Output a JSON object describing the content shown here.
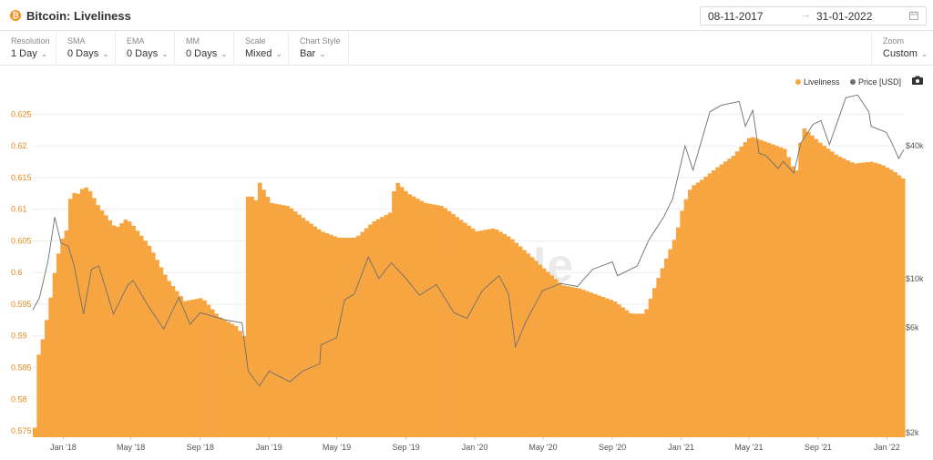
{
  "header": {
    "logo_glyph": "₿",
    "title": "Bitcoin: Liveliness",
    "date_from": "08-11-2017",
    "date_arrow": "→",
    "date_to": "31-01-2022"
  },
  "toolbar": {
    "resolution": {
      "label": "Resolution",
      "value": "1 Day"
    },
    "sma": {
      "label": "SMA",
      "value": "0 Days"
    },
    "ema": {
      "label": "EMA",
      "value": "0 Days"
    },
    "mm": {
      "label": "MM",
      "value": "0 Days"
    },
    "scale": {
      "label": "Scale",
      "value": "Mixed"
    },
    "chart_style": {
      "label": "Chart Style",
      "value": "Bar"
    },
    "zoom": {
      "label": "Zoom",
      "value": "Custom"
    }
  },
  "legend": {
    "liveliness": "Liveliness",
    "price": "Price [USD]"
  },
  "watermark": "glassnode",
  "colors": {
    "liveliness": "#f7a540",
    "price": "#6e6e6e",
    "left_axis_text": "#e8891b",
    "grid": "#eeeeee"
  },
  "chart_data": {
    "type": "bar",
    "x_ticks": [
      "Jan '18",
      "May '18",
      "Sep '18",
      "Jan '19",
      "May '19",
      "Sep '19",
      "Jan '20",
      "May '20",
      "Sep '20",
      "Jan '21",
      "May '21",
      "Sep '21",
      "Jan '22"
    ],
    "left_axis": {
      "ticks": [
        "0.625",
        "0.62",
        "0.615",
        "0.61",
        "0.605",
        "0.6",
        "0.595",
        "0.59",
        "0.585",
        "0.58",
        "0.575"
      ],
      "ylim": [
        0.574,
        0.6275
      ]
    },
    "right_axis": {
      "scale": "log",
      "ticks": [
        "$40k",
        "$10k",
        "$6k",
        "$2k"
      ]
    },
    "series": [
      {
        "name": "Liveliness",
        "type": "bar",
        "axis": "left",
        "points": [
          [
            "2017-11-08",
            0.5755
          ],
          [
            "2017-11-12",
            0.586
          ],
          [
            "2017-11-25",
            0.5905
          ],
          [
            "2017-12-05",
            0.5955
          ],
          [
            "2017-12-15",
            0.601
          ],
          [
            "2017-12-25",
            0.605
          ],
          [
            "2018-01-05",
            0.607
          ],
          [
            "2018-01-12",
            0.6135
          ],
          [
            "2018-01-20",
            0.612
          ],
          [
            "2018-02-01",
            0.6133
          ],
          [
            "2018-02-10",
            0.6135
          ],
          [
            "2018-03-01",
            0.6105
          ],
          [
            "2018-04-01",
            0.607
          ],
          [
            "2018-04-20",
            0.6085
          ],
          [
            "2018-05-01",
            0.6075
          ],
          [
            "2018-06-01",
            0.604
          ],
          [
            "2018-07-01",
            0.599
          ],
          [
            "2018-08-01",
            0.5955
          ],
          [
            "2018-09-01",
            0.596
          ],
          [
            "2018-10-01",
            0.593
          ],
          [
            "2018-11-01",
            0.5915
          ],
          [
            "2018-11-18",
            0.5895
          ],
          [
            "2018-11-20",
            0.612
          ],
          [
            "2018-12-01",
            0.612
          ],
          [
            "2018-12-08",
            0.611
          ],
          [
            "2018-12-10",
            0.6145
          ],
          [
            "2019-01-01",
            0.611
          ],
          [
            "2019-02-01",
            0.6105
          ],
          [
            "2019-03-01",
            0.6085
          ],
          [
            "2019-04-01",
            0.6065
          ],
          [
            "2019-05-01",
            0.6055
          ],
          [
            "2019-06-01",
            0.6055
          ],
          [
            "2019-07-01",
            0.608
          ],
          [
            "2019-08-01",
            0.6095
          ],
          [
            "2019-08-10",
            0.6145
          ],
          [
            "2019-09-01",
            0.6125
          ],
          [
            "2019-10-01",
            0.611
          ],
          [
            "2019-11-01",
            0.6105
          ],
          [
            "2019-12-01",
            0.6085
          ],
          [
            "2020-01-01",
            0.6065
          ],
          [
            "2020-02-01",
            0.607
          ],
          [
            "2020-03-01",
            0.6055
          ],
          [
            "2020-04-01",
            0.603
          ],
          [
            "2020-05-01",
            0.6005
          ],
          [
            "2020-06-01",
            0.598
          ],
          [
            "2020-07-01",
            0.5975
          ],
          [
            "2020-08-01",
            0.5965
          ],
          [
            "2020-09-01",
            0.5955
          ],
          [
            "2020-10-01",
            0.5935
          ],
          [
            "2020-10-25",
            0.5935
          ],
          [
            "2020-11-15",
            0.5985
          ],
          [
            "2020-12-01",
            0.602
          ],
          [
            "2020-12-20",
            0.606
          ],
          [
            "2021-01-01",
            0.6105
          ],
          [
            "2021-01-15",
            0.6135
          ],
          [
            "2021-02-01",
            0.6145
          ],
          [
            "2021-03-01",
            0.6165
          ],
          [
            "2021-04-01",
            0.6185
          ],
          [
            "2021-04-20",
            0.6205
          ],
          [
            "2021-05-01",
            0.6215
          ],
          [
            "2021-06-01",
            0.6205
          ],
          [
            "2021-07-01",
            0.6195
          ],
          [
            "2021-07-20",
            0.6155
          ],
          [
            "2021-08-01",
            0.623
          ],
          [
            "2021-09-01",
            0.6205
          ],
          [
            "2021-10-01",
            0.6185
          ],
          [
            "2021-11-01",
            0.6172
          ],
          [
            "2021-12-01",
            0.6175
          ],
          [
            "2021-12-20",
            0.617
          ],
          [
            "2022-01-10",
            0.616
          ],
          [
            "2022-01-31",
            0.6145
          ]
        ]
      },
      {
        "name": "Price [USD]",
        "type": "line",
        "axis": "right",
        "points": [
          [
            "2017-11-08",
            7200
          ],
          [
            "2017-11-20",
            8200
          ],
          [
            "2017-12-05",
            12000
          ],
          [
            "2017-12-17",
            19000
          ],
          [
            "2017-12-28",
            14500
          ],
          [
            "2018-01-10",
            14000
          ],
          [
            "2018-01-20",
            11500
          ],
          [
            "2018-02-06",
            6900
          ],
          [
            "2018-02-20",
            11000
          ],
          [
            "2018-03-05",
            11400
          ],
          [
            "2018-03-31",
            6900
          ],
          [
            "2018-04-25",
            9300
          ],
          [
            "2018-05-05",
            9800
          ],
          [
            "2018-06-01",
            7500
          ],
          [
            "2018-06-28",
            5900
          ],
          [
            "2018-07-25",
            8200
          ],
          [
            "2018-08-14",
            6200
          ],
          [
            "2018-09-01",
            7000
          ],
          [
            "2018-10-15",
            6500
          ],
          [
            "2018-11-14",
            6300
          ],
          [
            "2018-11-25",
            3800
          ],
          [
            "2018-12-15",
            3250
          ],
          [
            "2019-01-01",
            3800
          ],
          [
            "2019-02-07",
            3400
          ],
          [
            "2019-03-01",
            3800
          ],
          [
            "2019-04-01",
            4100
          ],
          [
            "2019-04-03",
            5000
          ],
          [
            "2019-05-01",
            5400
          ],
          [
            "2019-05-15",
            8000
          ],
          [
            "2019-06-01",
            8500
          ],
          [
            "2019-06-26",
            12500
          ],
          [
            "2019-07-15",
            10000
          ],
          [
            "2019-08-06",
            11800
          ],
          [
            "2019-09-01",
            10000
          ],
          [
            "2019-09-25",
            8400
          ],
          [
            "2019-10-25",
            9400
          ],
          [
            "2019-11-25",
            7000
          ],
          [
            "2019-12-18",
            6600
          ],
          [
            "2020-01-14",
            8800
          ],
          [
            "2020-02-13",
            10300
          ],
          [
            "2020-03-01",
            8500
          ],
          [
            "2020-03-13",
            4900
          ],
          [
            "2020-04-01",
            6400
          ],
          [
            "2020-04-30",
            8800
          ],
          [
            "2020-06-01",
            9500
          ],
          [
            "2020-07-01",
            9200
          ],
          [
            "2020-07-28",
            11000
          ],
          [
            "2020-09-01",
            11900
          ],
          [
            "2020-09-10",
            10300
          ],
          [
            "2020-10-15",
            11400
          ],
          [
            "2020-11-05",
            15000
          ],
          [
            "2020-12-01",
            19000
          ],
          [
            "2020-12-17",
            23000
          ],
          [
            "2021-01-08",
            40000
          ],
          [
            "2021-01-22",
            31000
          ],
          [
            "2021-02-21",
            57000
          ],
          [
            "2021-03-13",
            61000
          ],
          [
            "2021-04-14",
            63500
          ],
          [
            "2021-04-25",
            49000
          ],
          [
            "2021-05-08",
            58000
          ],
          [
            "2021-05-19",
            37000
          ],
          [
            "2021-06-01",
            36000
          ],
          [
            "2021-06-22",
            31500
          ],
          [
            "2021-07-01",
            34000
          ],
          [
            "2021-07-20",
            30000
          ],
          [
            "2021-08-01",
            41000
          ],
          [
            "2021-08-23",
            50000
          ],
          [
            "2021-09-06",
            52000
          ],
          [
            "2021-09-21",
            40500
          ],
          [
            "2021-10-20",
            66000
          ],
          [
            "2021-11-10",
            68000
          ],
          [
            "2021-11-30",
            57000
          ],
          [
            "2021-12-04",
            49000
          ],
          [
            "2021-12-31",
            46000
          ],
          [
            "2022-01-10",
            41000
          ],
          [
            "2022-01-22",
            35000
          ],
          [
            "2022-01-31",
            38400
          ]
        ]
      }
    ]
  }
}
